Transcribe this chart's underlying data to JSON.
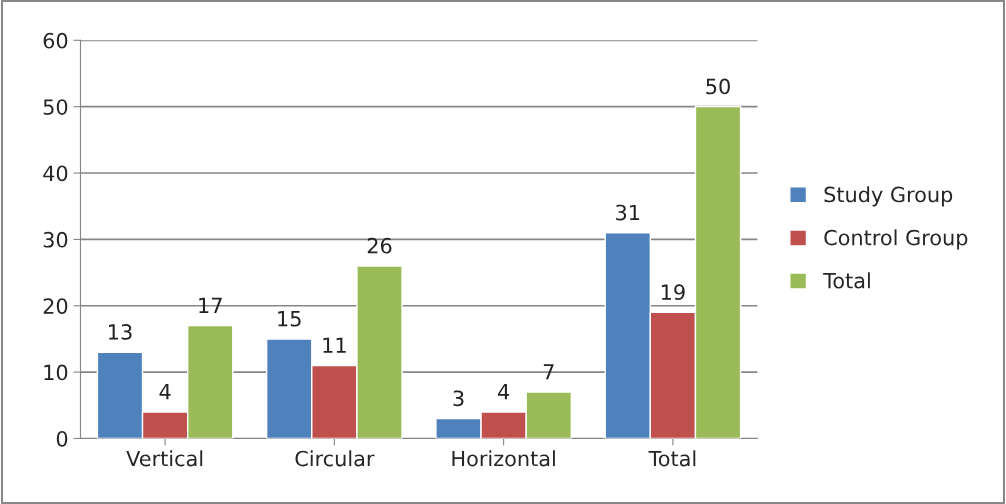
{
  "chart_data": {
    "type": "bar",
    "categories": [
      "Vertical",
      "Circular",
      "Horizontal",
      "Total"
    ],
    "series": [
      {
        "name": "Study Group",
        "color": "#4f81bd",
        "values": [
          13,
          15,
          3,
          31
        ]
      },
      {
        "name": "Control Group",
        "color": "#c0504d",
        "values": [
          4,
          11,
          4,
          19
        ]
      },
      {
        "name": "Total",
        "color": "#9bbb59",
        "values": [
          17,
          26,
          7,
          50
        ]
      }
    ],
    "ylim": [
      0,
      60
    ],
    "yticks": [
      0,
      10,
      20,
      30,
      40,
      50,
      60
    ],
    "grid": "y",
    "legend": "right",
    "data_labels": true
  }
}
